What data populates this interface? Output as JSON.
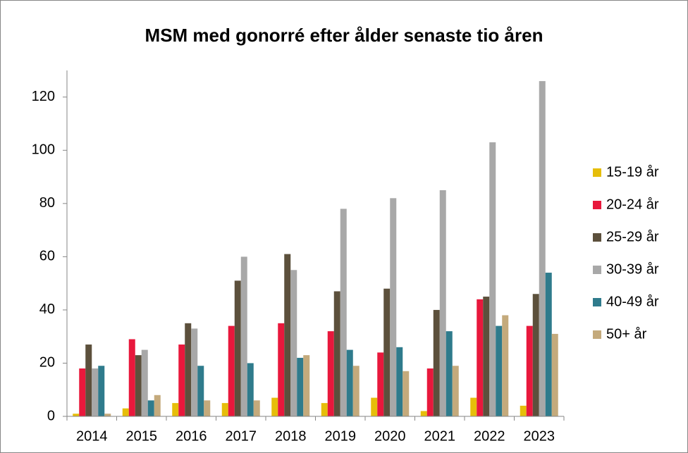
{
  "chart_data": {
    "type": "bar",
    "title": "MSM med gonorré efter ålder senaste tio åren",
    "categories": [
      "2014",
      "2015",
      "2016",
      "2017",
      "2018",
      "2019",
      "2020",
      "2021",
      "2022",
      "2023"
    ],
    "series": [
      {
        "name": "15-19 år",
        "color": "#e6be0a",
        "values": [
          1,
          3,
          5,
          5,
          7,
          5,
          7,
          2,
          7,
          4
        ]
      },
      {
        "name": "20-24 år",
        "color": "#e8183c",
        "values": [
          18,
          29,
          27,
          34,
          35,
          32,
          24,
          18,
          44,
          34
        ]
      },
      {
        "name": "25-29 år",
        "color": "#5c503c",
        "values": [
          27,
          23,
          35,
          51,
          61,
          47,
          48,
          40,
          45,
          46
        ]
      },
      {
        "name": "30-39 år",
        "color": "#a8a8a8",
        "values": [
          18,
          25,
          33,
          60,
          55,
          78,
          82,
          85,
          103,
          126
        ]
      },
      {
        "name": "40-49 år",
        "color": "#2f7b8c",
        "values": [
          19,
          6,
          19,
          20,
          22,
          25,
          26,
          32,
          34,
          54
        ]
      },
      {
        "name": "50+ år",
        "color": "#c4aa7c",
        "values": [
          1,
          8,
          6,
          6,
          23,
          19,
          17,
          19,
          38,
          31
        ]
      }
    ],
    "ylim": [
      0,
      130
    ],
    "yticks": [
      0,
      20,
      40,
      60,
      80,
      100,
      120
    ],
    "grid": false,
    "legend": "right"
  }
}
